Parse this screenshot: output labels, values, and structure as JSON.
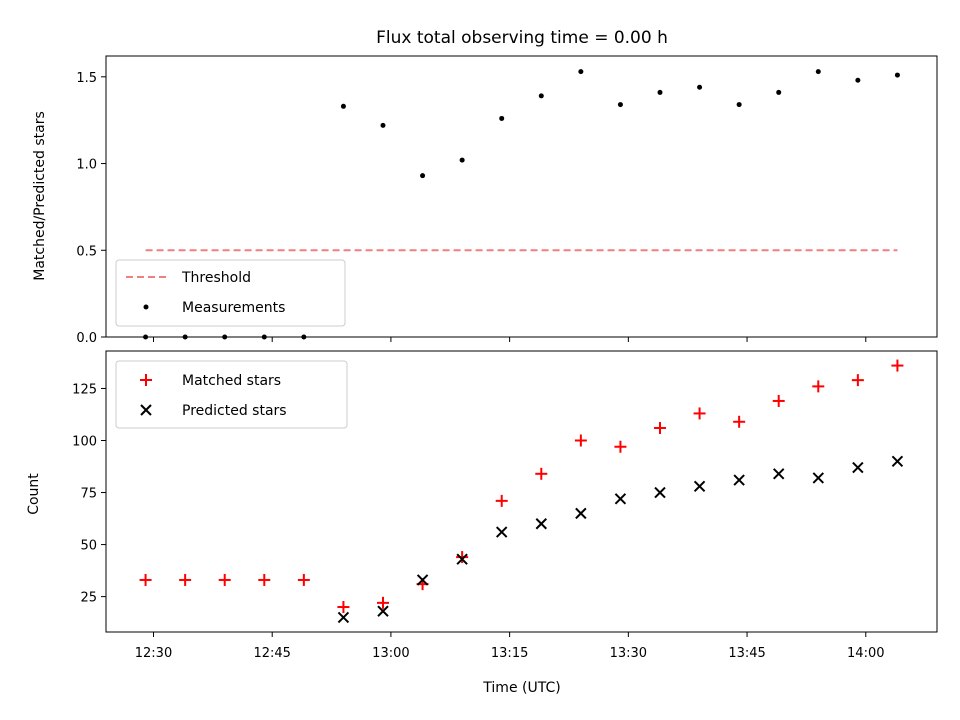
{
  "chart_data": [
    {
      "type": "scatter",
      "title": "Flux total observing time = 0.00 h",
      "xlabel": "",
      "ylabel": "Matched/Predicted stars",
      "ylim": [
        0,
        1.62
      ],
      "yticks": [
        "0.0",
        "0.5",
        "1.0",
        "1.5"
      ],
      "ytick_values": [
        0,
        0.5,
        1.0,
        1.5
      ],
      "x": [
        "12:29",
        "12:34",
        "12:39",
        "12:44",
        "12:49",
        "12:54",
        "12:59",
        "13:04",
        "13:09",
        "13:14",
        "13:19",
        "13:24",
        "13:29",
        "13:34",
        "13:39",
        "13:44",
        "13:49",
        "13:54",
        "13:59",
        "14:04"
      ],
      "series": [
        {
          "name": "Measurements",
          "marker": "dot",
          "color": "#000000",
          "values": [
            0,
            0,
            0,
            0,
            0,
            1.33,
            1.22,
            0.93,
            1.02,
            1.26,
            1.39,
            1.53,
            1.34,
            1.41,
            1.44,
            1.34,
            1.41,
            1.53,
            1.48,
            1.51
          ]
        },
        {
          "name": "Threshold",
          "marker": "dashed-line",
          "color": "#f08080",
          "x_range": [
            "12:29",
            "14:04"
          ],
          "value": 0.5
        }
      ],
      "legend": "lower-left",
      "grid": false
    },
    {
      "type": "scatter",
      "xlabel": "Time (UTC)",
      "ylabel": "Count",
      "ylim": [
        8,
        143
      ],
      "yticks": [
        "25",
        "50",
        "75",
        "100",
        "125"
      ],
      "ytick_values": [
        25,
        50,
        75,
        100,
        125
      ],
      "xlim": [
        "12:24",
        "14:09"
      ],
      "xticks": [
        "12:30",
        "12:45",
        "13:00",
        "13:15",
        "13:30",
        "13:45",
        "14:00"
      ],
      "x": [
        "12:29",
        "12:34",
        "12:39",
        "12:44",
        "12:49",
        "12:54",
        "12:59",
        "13:04",
        "13:09",
        "13:14",
        "13:19",
        "13:24",
        "13:29",
        "13:34",
        "13:39",
        "13:44",
        "13:49",
        "13:54",
        "13:59",
        "14:04"
      ],
      "series": [
        {
          "name": "Matched stars",
          "marker": "plus",
          "color": "#ff0000",
          "values": [
            33,
            33,
            33,
            33,
            33,
            20,
            22,
            31,
            44,
            71,
            84,
            100,
            97,
            106,
            113,
            109,
            119,
            126,
            129,
            136
          ]
        },
        {
          "name": "Predicted stars",
          "marker": "x",
          "color": "#000000",
          "x": [
            "12:54",
            "12:59",
            "13:04",
            "13:09",
            "13:14",
            "13:19",
            "13:24",
            "13:29",
            "13:34",
            "13:39",
            "13:44",
            "13:49",
            "13:54",
            "13:59",
            "14:04"
          ],
          "values": [
            15,
            18,
            33,
            43,
            56,
            60,
            65,
            72,
            75,
            78,
            81,
            84,
            82,
            87,
            90
          ]
        }
      ],
      "legend": "upper-left",
      "grid": false
    }
  ]
}
